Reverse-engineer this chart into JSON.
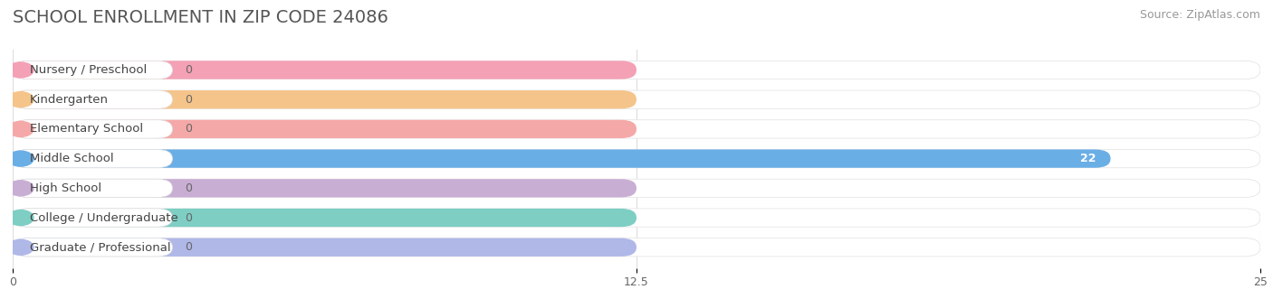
{
  "title": "SCHOOL ENROLLMENT IN ZIP CODE 24086",
  "source": "Source: ZipAtlas.com",
  "categories": [
    "Nursery / Preschool",
    "Kindergarten",
    "Elementary School",
    "Middle School",
    "High School",
    "College / Undergraduate",
    "Graduate / Professional"
  ],
  "values": [
    0,
    0,
    0,
    22,
    0,
    0,
    0
  ],
  "bar_colors": [
    "#f4a0b5",
    "#f5c48a",
    "#f5a8a8",
    "#6aaee6",
    "#c9aed4",
    "#7ecec4",
    "#b0b8e8"
  ],
  "dot_colors": [
    "#f4a0b5",
    "#f5c48a",
    "#f5a8a8",
    "#6aaee6",
    "#c9aed4",
    "#7ecec4",
    "#b0b8e8"
  ],
  "xlim": [
    0,
    25
  ],
  "xticks": [
    0,
    12.5,
    25
  ],
  "bar_height": 0.62,
  "background_color": "#ffffff",
  "title_fontsize": 14,
  "source_fontsize": 9,
  "label_fontsize": 9.5,
  "value_fontsize": 9
}
